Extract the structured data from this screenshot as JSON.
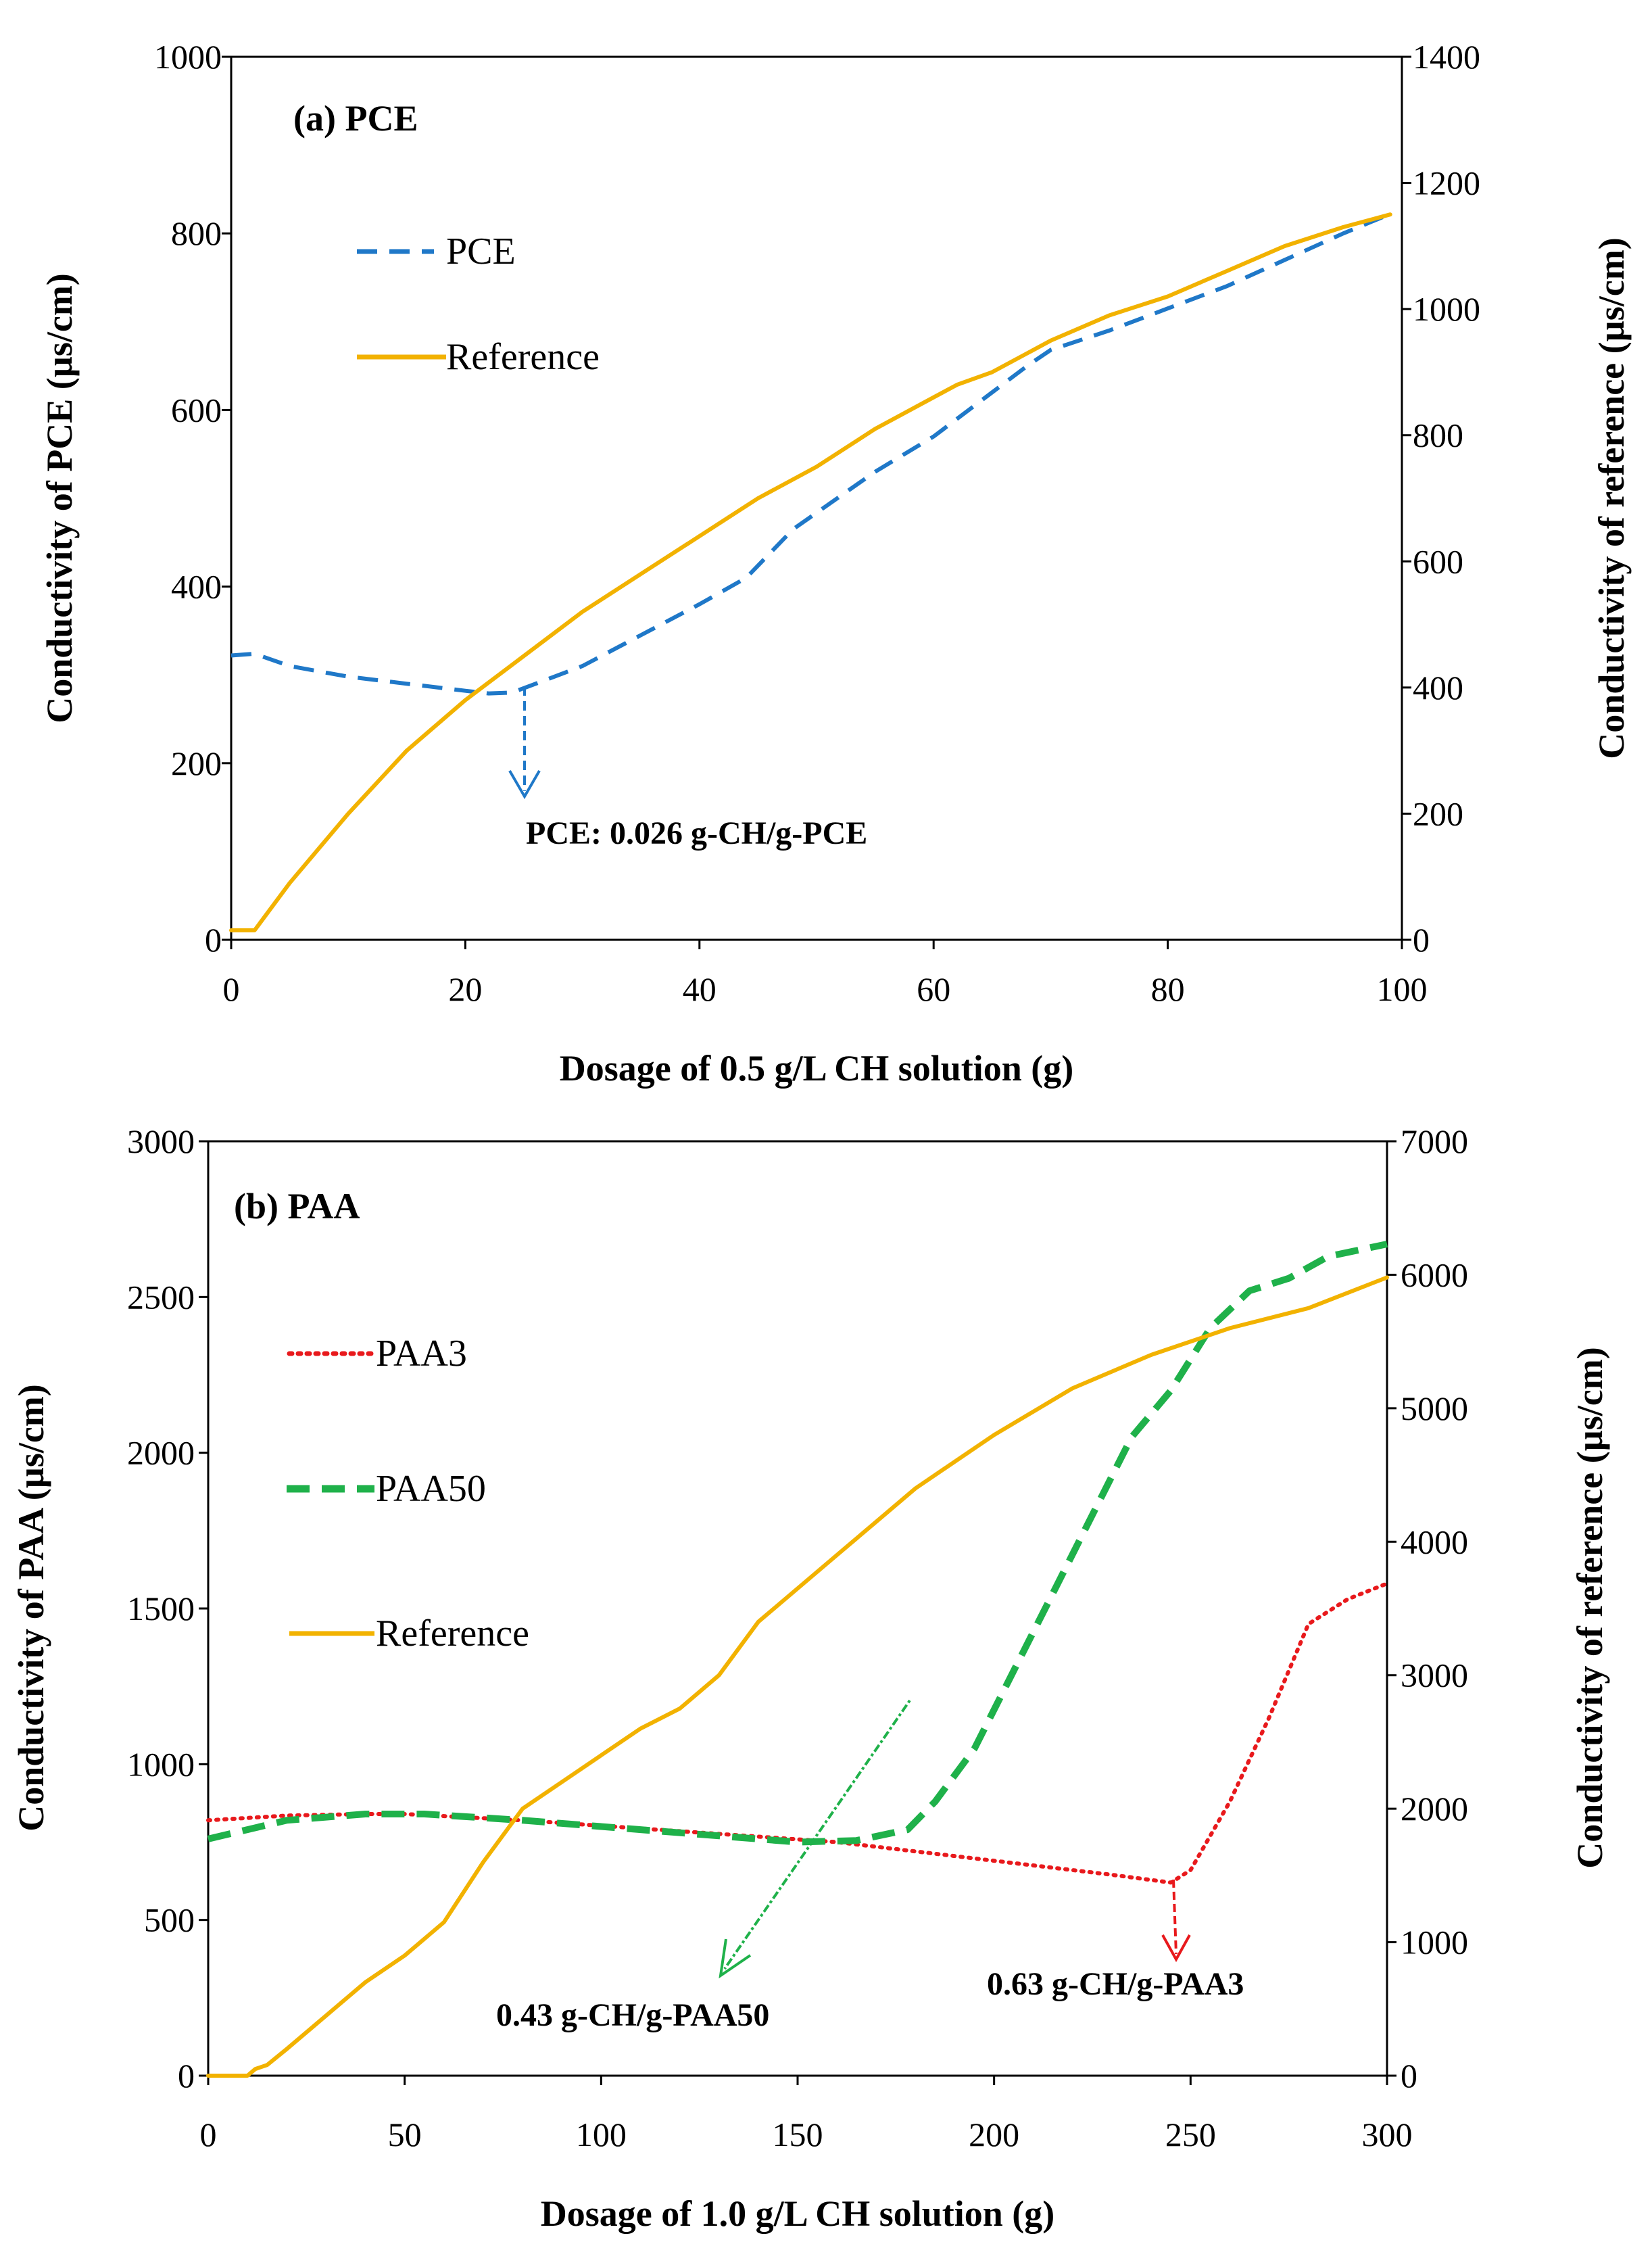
{
  "chart_data": [
    {
      "type": "line",
      "panel_label": "(a) PCE",
      "xlabel": "Dosage of 0.5 g/L CH solution (g)",
      "ylabel": "Conductivity of PCE (µs/cm)",
      "y2label": "Conductivity of reference (µs/cm)",
      "xlim": [
        0,
        100
      ],
      "ylim": [
        0,
        1000
      ],
      "y2lim": [
        0,
        1400
      ],
      "xticks": [
        "0",
        "20",
        "40",
        "60",
        "80",
        "100"
      ],
      "yticks": [
        "0",
        "200",
        "400",
        "600",
        "800",
        "1000"
      ],
      "y2ticks": [
        "0",
        "200",
        "400",
        "600",
        "800",
        "1000",
        "1200",
        "1400"
      ],
      "legend": [
        "PCE",
        "Reference"
      ],
      "annotation": "PCE: 0.026 g-CH/g-PCE",
      "series": [
        {
          "name": "PCE",
          "axis": "left",
          "color": "#1f78c8",
          "style": "dashed",
          "x": [
            0,
            2,
            5,
            10,
            15,
            20,
            22,
            24,
            26,
            30,
            35,
            40,
            44,
            48,
            55,
            60,
            65,
            68,
            70,
            75,
            80,
            85,
            90,
            95,
            99
          ],
          "y": [
            322,
            324,
            310,
            298,
            290,
            282,
            279,
            280,
            290,
            310,
            345,
            380,
            410,
            465,
            530,
            570,
            620,
            650,
            668,
            690,
            715,
            740,
            770,
            800,
            822
          ]
        },
        {
          "name": "Reference",
          "axis": "right",
          "color": "#f2b200",
          "style": "solid",
          "x": [
            0,
            2,
            5,
            10,
            15,
            20,
            25,
            30,
            35,
            40,
            45,
            50,
            55,
            60,
            62,
            65,
            70,
            75,
            80,
            85,
            90,
            95,
            99
          ],
          "y": [
            15,
            15,
            90,
            200,
            300,
            380,
            450,
            520,
            580,
            640,
            700,
            750,
            810,
            860,
            880,
            900,
            950,
            990,
            1020,
            1060,
            1100,
            1130,
            1150
          ]
        }
      ]
    },
    {
      "type": "line",
      "panel_label": "(b) PAA",
      "xlabel": "Dosage of 1.0 g/L CH solution (g)",
      "ylabel": "Conductivity of PAA (µs/cm)",
      "y2label": "Conductivity of reference (µs/cm)",
      "xlim": [
        0,
        300
      ],
      "ylim": [
        0,
        3000
      ],
      "y2lim": [
        0,
        7000
      ],
      "xticks": [
        "0",
        "50",
        "100",
        "150",
        "200",
        "250",
        "300"
      ],
      "yticks": [
        "0",
        "500",
        "1000",
        "1500",
        "2000",
        "2500",
        "3000"
      ],
      "y2ticks": [
        "0",
        "1000",
        "2000",
        "3000",
        "4000",
        "5000",
        "6000",
        "7000"
      ],
      "legend": [
        "PAA3",
        "PAA50",
        "Reference"
      ],
      "annotations": [
        "0.43 g-CH/g-PAA50",
        "0.63 g-CH/g-PAA3"
      ],
      "series": [
        {
          "name": "PAA3",
          "axis": "left",
          "color": "#e8191c",
          "style": "dotted",
          "x": [
            0,
            20,
            40,
            50,
            80,
            120,
            160,
            200,
            230,
            245,
            250,
            260,
            270,
            280,
            290,
            300
          ],
          "y": [
            820,
            835,
            840,
            840,
            820,
            785,
            750,
            690,
            645,
            620,
            660,
            880,
            1150,
            1450,
            1530,
            1580
          ]
        },
        {
          "name": "PAA50",
          "axis": "left",
          "color": "#1fb14a",
          "style": "dashed",
          "x": [
            0,
            20,
            40,
            55,
            80,
            120,
            150,
            165,
            178,
            185,
            195,
            205,
            215,
            225,
            235,
            245,
            255,
            265,
            275,
            285,
            300
          ],
          "y": [
            760,
            820,
            840,
            840,
            820,
            780,
            750,
            755,
            790,
            880,
            1050,
            1300,
            1550,
            1800,
            2050,
            2200,
            2400,
            2520,
            2560,
            2630,
            2670
          ]
        },
        {
          "name": "Reference",
          "axis": "right",
          "color": "#f2b200",
          "style": "solid",
          "x": [
            0,
            10,
            12,
            15,
            20,
            30,
            40,
            50,
            60,
            70,
            80,
            90,
            100,
            110,
            120,
            130,
            140,
            150,
            160,
            170,
            180,
            200,
            220,
            240,
            260,
            280,
            300
          ],
          "y": [
            0,
            0,
            50,
            80,
            200,
            450,
            700,
            900,
            1150,
            1600,
            2000,
            2200,
            2400,
            2600,
            2750,
            3000,
            3400,
            3650,
            3900,
            4150,
            4400,
            4800,
            5150,
            5400,
            5600,
            5750,
            5980
          ]
        }
      ]
    }
  ]
}
